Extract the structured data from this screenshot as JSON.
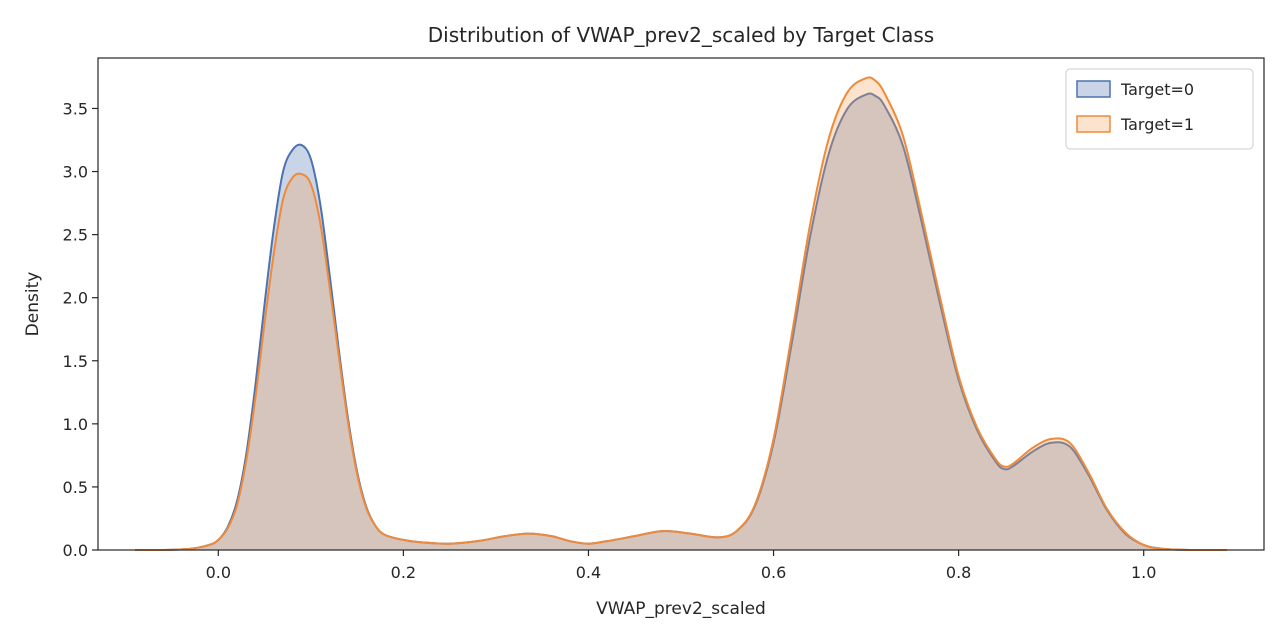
{
  "chart_data": {
    "type": "area",
    "title": "Distribution of VWAP_prev2_scaled by Target Class",
    "xlabel": "VWAP_prev2_scaled",
    "ylabel": "Density",
    "xlim": [
      -0.13,
      1.13
    ],
    "ylim": [
      0,
      3.9
    ],
    "x_ticks": [
      0.0,
      0.2,
      0.4,
      0.6,
      0.8,
      1.0
    ],
    "x_tick_labels": [
      "0.0",
      "0.2",
      "0.4",
      "0.6",
      "0.8",
      "1.0"
    ],
    "y_ticks": [
      0.0,
      0.5,
      1.0,
      1.5,
      2.0,
      2.5,
      3.0,
      3.5
    ],
    "y_tick_labels": [
      "0.0",
      "0.5",
      "1.0",
      "1.5",
      "2.0",
      "2.5",
      "3.0",
      "3.5"
    ],
    "legend_position": "top-right",
    "grid": false,
    "series": [
      {
        "name": "Target=0",
        "color": "#4C72B0",
        "fill_color": "#4C72B0",
        "x": [
          -0.09,
          -0.06,
          -0.03,
          -0.01,
          0.0,
          0.01,
          0.02,
          0.03,
          0.04,
          0.05,
          0.06,
          0.07,
          0.08,
          0.09,
          0.1,
          0.11,
          0.12,
          0.13,
          0.14,
          0.15,
          0.16,
          0.17,
          0.18,
          0.2,
          0.22,
          0.25,
          0.28,
          0.31,
          0.335,
          0.36,
          0.38,
          0.4,
          0.42,
          0.45,
          0.48,
          0.51,
          0.54,
          0.56,
          0.58,
          0.6,
          0.62,
          0.64,
          0.66,
          0.68,
          0.7,
          0.71,
          0.72,
          0.74,
          0.76,
          0.78,
          0.8,
          0.82,
          0.84,
          0.85,
          0.86,
          0.88,
          0.9,
          0.92,
          0.94,
          0.96,
          0.98,
          1.0,
          1.02,
          1.05,
          1.09
        ],
        "y": [
          0.0,
          0.0,
          0.01,
          0.04,
          0.08,
          0.18,
          0.38,
          0.75,
          1.3,
          1.95,
          2.55,
          3.0,
          3.17,
          3.21,
          3.1,
          2.75,
          2.2,
          1.6,
          1.05,
          0.62,
          0.34,
          0.19,
          0.12,
          0.08,
          0.06,
          0.05,
          0.07,
          0.11,
          0.13,
          0.11,
          0.07,
          0.05,
          0.07,
          0.11,
          0.15,
          0.13,
          0.1,
          0.15,
          0.35,
          0.85,
          1.65,
          2.5,
          3.15,
          3.5,
          3.61,
          3.6,
          3.52,
          3.2,
          2.6,
          1.95,
          1.35,
          0.95,
          0.7,
          0.64,
          0.67,
          0.78,
          0.85,
          0.82,
          0.6,
          0.32,
          0.13,
          0.04,
          0.01,
          0.0,
          0.0
        ]
      },
      {
        "name": "Target=1",
        "color": "#EE8A3A",
        "fill_color": "#F4A35B",
        "x": [
          -0.09,
          -0.06,
          -0.03,
          -0.01,
          0.0,
          0.01,
          0.02,
          0.03,
          0.04,
          0.05,
          0.06,
          0.07,
          0.08,
          0.09,
          0.1,
          0.11,
          0.12,
          0.13,
          0.14,
          0.15,
          0.16,
          0.17,
          0.18,
          0.2,
          0.22,
          0.25,
          0.28,
          0.31,
          0.335,
          0.36,
          0.38,
          0.4,
          0.42,
          0.45,
          0.48,
          0.51,
          0.54,
          0.56,
          0.58,
          0.6,
          0.62,
          0.64,
          0.66,
          0.68,
          0.7,
          0.71,
          0.72,
          0.74,
          0.76,
          0.78,
          0.8,
          0.82,
          0.84,
          0.85,
          0.86,
          0.88,
          0.9,
          0.92,
          0.94,
          0.96,
          0.98,
          1.0,
          1.02,
          1.05,
          1.09
        ],
        "y": [
          0.0,
          0.0,
          0.01,
          0.04,
          0.08,
          0.17,
          0.35,
          0.7,
          1.2,
          1.8,
          2.35,
          2.78,
          2.95,
          2.98,
          2.9,
          2.6,
          2.1,
          1.55,
          1.02,
          0.6,
          0.33,
          0.19,
          0.12,
          0.08,
          0.06,
          0.05,
          0.07,
          0.11,
          0.13,
          0.11,
          0.07,
          0.05,
          0.07,
          0.11,
          0.15,
          0.13,
          0.1,
          0.15,
          0.36,
          0.88,
          1.72,
          2.6,
          3.27,
          3.63,
          3.74,
          3.72,
          3.62,
          3.28,
          2.66,
          2.0,
          1.38,
          0.97,
          0.72,
          0.66,
          0.69,
          0.81,
          0.88,
          0.85,
          0.62,
          0.33,
          0.14,
          0.04,
          0.01,
          0.0,
          0.0
        ]
      }
    ]
  }
}
